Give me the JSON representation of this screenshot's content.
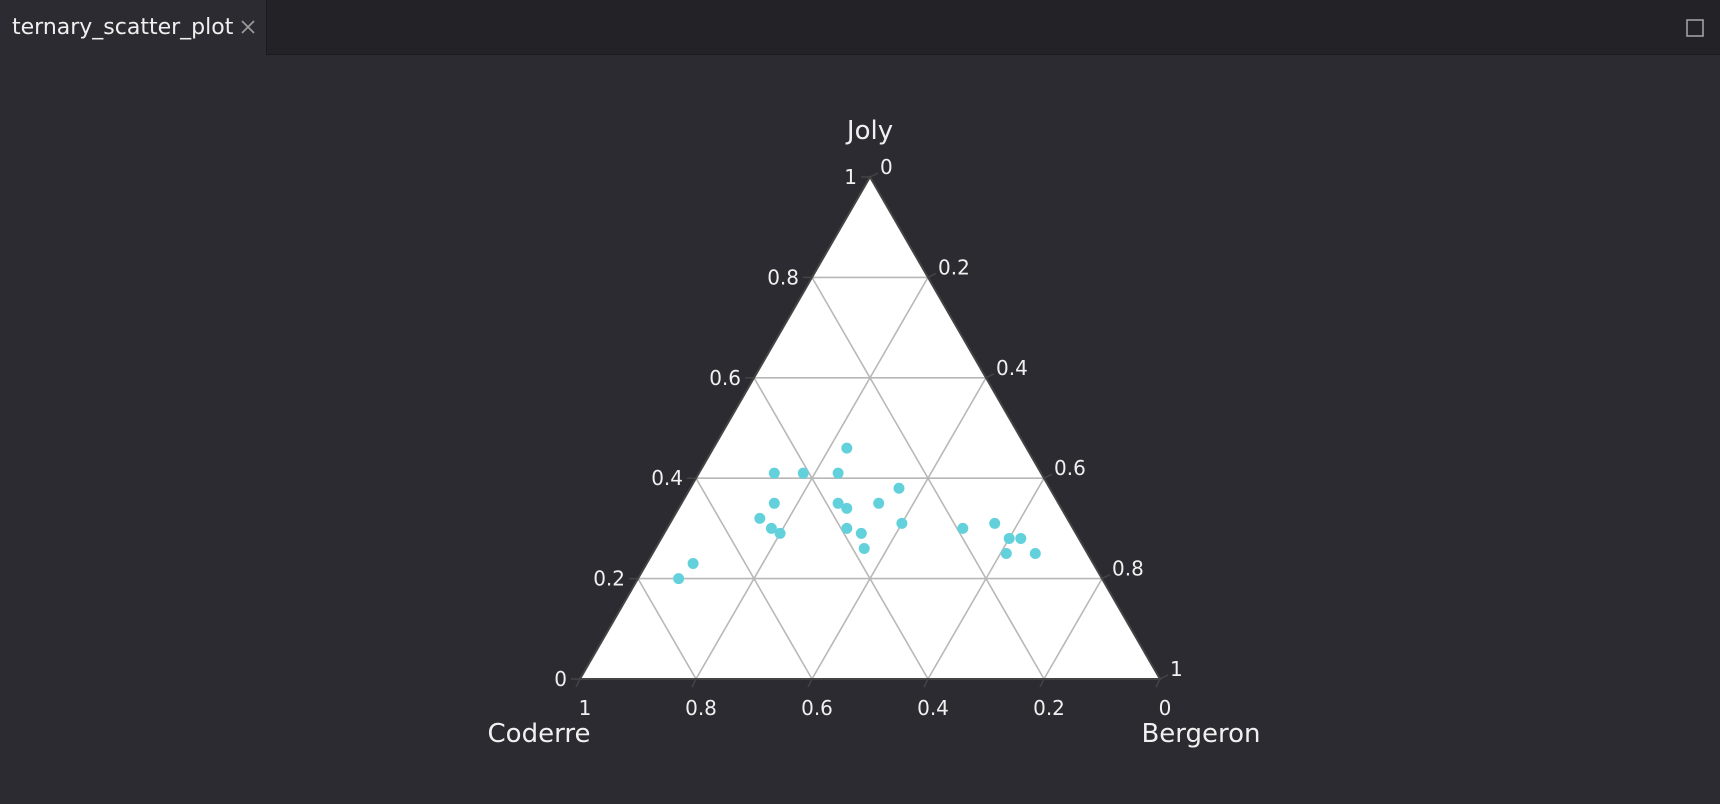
{
  "tab": {
    "title": "ternary_scatter_plot",
    "close_icon": "close-icon"
  },
  "window": {
    "maximize_icon": "maximize-icon"
  },
  "colors": {
    "background": "#2c2b31",
    "tabbar": "#232227",
    "plot_fill": "#ffffff",
    "grid": "#b8b8b8",
    "axis": "#444444",
    "text": "#f0f0f0",
    "marker": "#63d1dc"
  },
  "chart_data": {
    "type": "scatter",
    "subtype": "ternary",
    "axes": {
      "top": {
        "title": "Joly",
        "ticks": [
          "0",
          "0.2",
          "0.4",
          "0.6",
          "0.8",
          "1"
        ]
      },
      "left": {
        "title": "Coderre",
        "ticks": [
          "0",
          "0.2",
          "0.4",
          "0.6",
          "0.8",
          "1"
        ]
      },
      "right": {
        "title": "Bergeron",
        "ticks": [
          "0",
          "0.2",
          "0.4",
          "0.6",
          "0.8",
          "1"
        ]
      }
    },
    "grid": true,
    "marker_color": "#63d1dc",
    "points": [
      {
        "Joly": 0.2,
        "Coderre": 0.73,
        "Bergeron": 0.07
      },
      {
        "Joly": 0.23,
        "Coderre": 0.69,
        "Bergeron": 0.08
      },
      {
        "Joly": 0.32,
        "Coderre": 0.53,
        "Bergeron": 0.15
      },
      {
        "Joly": 0.35,
        "Coderre": 0.49,
        "Bergeron": 0.16
      },
      {
        "Joly": 0.3,
        "Coderre": 0.52,
        "Bergeron": 0.18
      },
      {
        "Joly": 0.29,
        "Coderre": 0.51,
        "Bergeron": 0.2
      },
      {
        "Joly": 0.41,
        "Coderre": 0.46,
        "Bergeron": 0.13
      },
      {
        "Joly": 0.41,
        "Coderre": 0.41,
        "Bergeron": 0.18
      },
      {
        "Joly": 0.46,
        "Coderre": 0.31,
        "Bergeron": 0.23
      },
      {
        "Joly": 0.41,
        "Coderre": 0.35,
        "Bergeron": 0.24
      },
      {
        "Joly": 0.35,
        "Coderre": 0.38,
        "Bergeron": 0.27
      },
      {
        "Joly": 0.34,
        "Coderre": 0.37,
        "Bergeron": 0.29
      },
      {
        "Joly": 0.3,
        "Coderre": 0.39,
        "Bergeron": 0.31
      },
      {
        "Joly": 0.29,
        "Coderre": 0.37,
        "Bergeron": 0.34
      },
      {
        "Joly": 0.26,
        "Coderre": 0.38,
        "Bergeron": 0.36
      },
      {
        "Joly": 0.35,
        "Coderre": 0.31,
        "Bergeron": 0.34
      },
      {
        "Joly": 0.38,
        "Coderre": 0.26,
        "Bergeron": 0.36
      },
      {
        "Joly": 0.31,
        "Coderre": 0.29,
        "Bergeron": 0.4
      },
      {
        "Joly": 0.3,
        "Coderre": 0.19,
        "Bergeron": 0.51
      },
      {
        "Joly": 0.31,
        "Coderre": 0.13,
        "Bergeron": 0.56
      },
      {
        "Joly": 0.28,
        "Coderre": 0.12,
        "Bergeron": 0.6
      },
      {
        "Joly": 0.25,
        "Coderre": 0.14,
        "Bergeron": 0.61
      },
      {
        "Joly": 0.28,
        "Coderre": 0.1,
        "Bergeron": 0.62
      },
      {
        "Joly": 0.25,
        "Coderre": 0.09,
        "Bergeron": 0.66
      }
    ]
  }
}
